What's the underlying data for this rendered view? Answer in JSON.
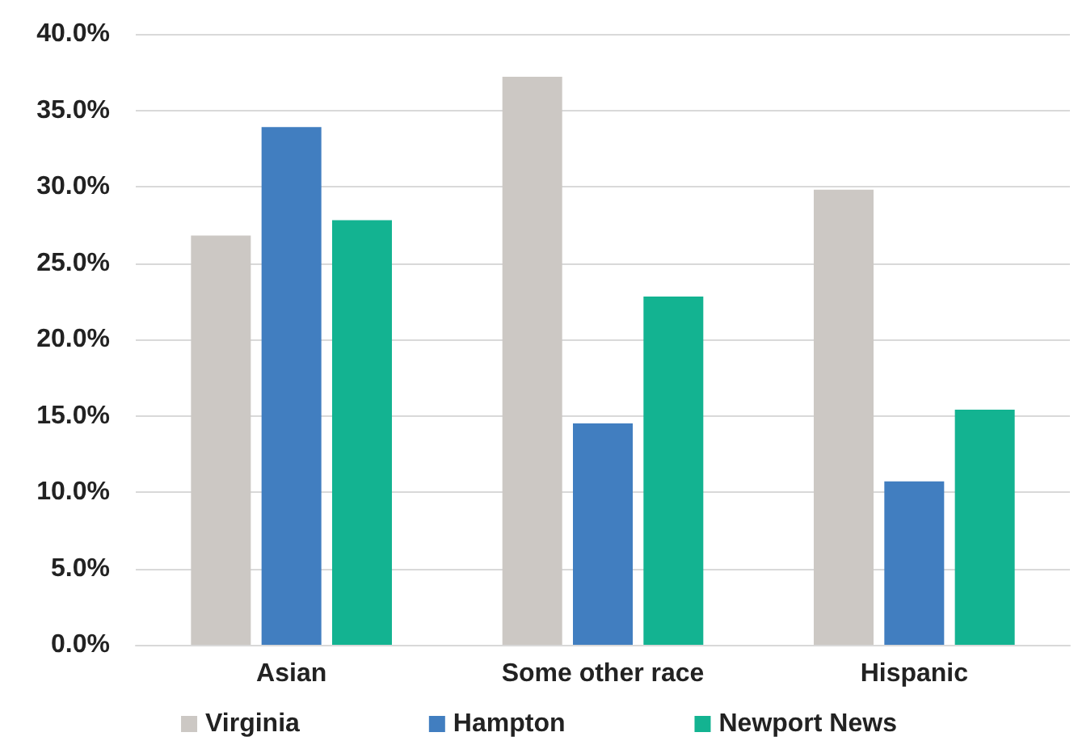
{
  "chart_data": {
    "type": "bar",
    "categories": [
      "Asian",
      "Some other race",
      "Hispanic"
    ],
    "series": [
      {
        "name": "Virginia",
        "color": "#ccc8c4",
        "values": [
          26.8,
          37.2,
          29.8
        ]
      },
      {
        "name": "Hampton",
        "color": "#417ec0",
        "values": [
          33.9,
          14.5,
          10.7
        ]
      },
      {
        "name": "Newport News",
        "color": "#13b391",
        "values": [
          27.8,
          22.8,
          15.4
        ]
      }
    ],
    "ylim": [
      0,
      40
    ],
    "yticks": [
      {
        "value": 0,
        "label": "0.0%"
      },
      {
        "value": 5,
        "label": "5.0%"
      },
      {
        "value": 10,
        "label": "10.0%"
      },
      {
        "value": 15,
        "label": "15.0%"
      },
      {
        "value": 20,
        "label": "20.0%"
      },
      {
        "value": 25,
        "label": "25.0%"
      },
      {
        "value": 30,
        "label": "30.0%"
      },
      {
        "value": 35,
        "label": "35.0%"
      },
      {
        "value": 40,
        "label": "40.0%"
      }
    ],
    "grid": "y",
    "legend": "bottom"
  }
}
